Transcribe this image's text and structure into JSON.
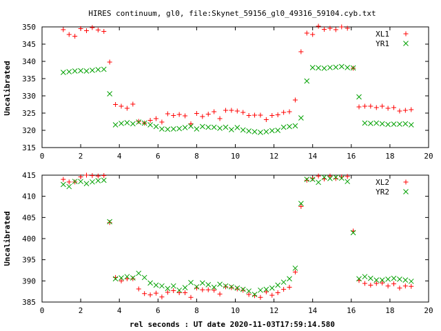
{
  "figure": {
    "title": "HIRES continuum, gl0, file:Skynet_59156_gl0_49316_59104.cyb.txt",
    "xlabel": "rel seconds : UT date 2020-11-03T17:59:14.580"
  },
  "colors": {
    "red": "#ff0000",
    "green": "#00a000",
    "axis": "#000000"
  },
  "chart_data": [
    {
      "type": "scatter",
      "title": "HIRES continuum, gl0, file:Skynet_59156_gl0_49316_59104.cyb.txt",
      "xlabel": "",
      "ylabel": "Uncalibrated",
      "xlim": [
        0,
        20
      ],
      "ylim": [
        315,
        350
      ],
      "xticks": [
        0,
        2,
        4,
        6,
        8,
        10,
        12,
        14,
        16,
        18,
        20
      ],
      "yticks": [
        315,
        320,
        325,
        330,
        335,
        340,
        345,
        350
      ],
      "grid": false,
      "legend": "top-right",
      "series": [
        {
          "name": "XL1",
          "color": "#ff0000",
          "marker": "plus",
          "x": [
            1.1,
            1.4,
            1.7,
            2.0,
            2.3,
            2.6,
            2.9,
            3.2,
            3.5,
            3.8,
            4.1,
            4.4,
            4.7,
            5.0,
            5.3,
            5.6,
            5.9,
            6.2,
            6.5,
            6.8,
            7.1,
            7.4,
            7.7,
            8.0,
            8.3,
            8.6,
            8.9,
            9.2,
            9.5,
            9.8,
            10.1,
            10.4,
            10.7,
            11.0,
            11.3,
            11.6,
            11.9,
            12.2,
            12.5,
            12.8,
            13.1,
            13.4,
            13.7,
            14.0,
            14.3,
            14.6,
            14.9,
            15.2,
            15.5,
            15.8,
            16.1,
            16.4,
            16.7,
            17.0,
            17.3,
            17.6,
            17.9,
            18.2,
            18.5,
            18.8,
            19.1
          ],
          "y": [
            349.2,
            347.8,
            347.3,
            349.5,
            348.9,
            349.8,
            349.1,
            348.7,
            339.8,
            327.5,
            327.0,
            326.4,
            327.6,
            322.6,
            322.1,
            322.9,
            323.4,
            322.4,
            324.8,
            324.3,
            324.6,
            324.2,
            321.9,
            324.9,
            324.0,
            324.7,
            325.4,
            323.4,
            325.8,
            325.8,
            325.6,
            325.2,
            324.3,
            324.4,
            324.4,
            323.1,
            324.3,
            324.5,
            325.2,
            325.4,
            328.8,
            342.8,
            348.2,
            347.8,
            350.2,
            349.3,
            349.6,
            349.2,
            350.0,
            349.6,
            338.0,
            326.8,
            327.0,
            327.0,
            326.6,
            327.0,
            326.4,
            326.6,
            325.6,
            325.8,
            326.0
          ]
        },
        {
          "name": "YR1",
          "color": "#00a000",
          "marker": "cross",
          "x": [
            1.1,
            1.4,
            1.7,
            2.0,
            2.3,
            2.6,
            2.9,
            3.2,
            3.5,
            3.8,
            4.1,
            4.4,
            4.7,
            5.0,
            5.3,
            5.6,
            5.9,
            6.2,
            6.5,
            6.8,
            7.1,
            7.4,
            7.7,
            8.0,
            8.3,
            8.6,
            8.9,
            9.2,
            9.5,
            9.8,
            10.1,
            10.4,
            10.7,
            11.0,
            11.3,
            11.6,
            11.9,
            12.2,
            12.5,
            12.8,
            13.1,
            13.4,
            13.7,
            14.0,
            14.3,
            14.6,
            14.9,
            15.2,
            15.5,
            15.8,
            16.1,
            16.4,
            16.7,
            17.0,
            17.3,
            17.6,
            17.9,
            18.2,
            18.5,
            18.8,
            19.1
          ],
          "y": [
            336.8,
            337.0,
            337.2,
            337.3,
            337.2,
            337.4,
            337.6,
            337.7,
            330.6,
            321.6,
            322.0,
            322.2,
            321.9,
            322.4,
            322.1,
            321.6,
            321.1,
            320.4,
            320.3,
            320.4,
            320.5,
            320.8,
            321.2,
            320.4,
            321.1,
            320.9,
            320.9,
            320.6,
            320.9,
            320.2,
            320.8,
            320.1,
            319.8,
            319.6,
            319.4,
            319.6,
            319.9,
            320.0,
            320.9,
            321.1,
            321.3,
            323.6,
            334.3,
            338.2,
            338.1,
            338.0,
            338.2,
            338.3,
            338.5,
            338.2,
            338.1,
            329.7,
            322.1,
            322.0,
            322.1,
            321.9,
            321.7,
            321.8,
            321.8,
            321.9,
            321.6
          ]
        }
      ]
    },
    {
      "type": "scatter",
      "title": "",
      "xlabel": "rel seconds : UT date 2020-11-03T17:59:14.580",
      "ylabel": "Uncalibrated",
      "xlim": [
        0,
        20
      ],
      "ylim": [
        385,
        415
      ],
      "xticks": [
        0,
        2,
        4,
        6,
        8,
        10,
        12,
        14,
        16,
        18,
        20
      ],
      "yticks": [
        385,
        390,
        395,
        400,
        405,
        410,
        415
      ],
      "grid": false,
      "legend": "top-right",
      "series": [
        {
          "name": "XL2",
          "color": "#ff0000",
          "marker": "plus",
          "x": [
            1.1,
            1.4,
            1.7,
            2.0,
            2.3,
            2.6,
            2.9,
            3.2,
            3.5,
            3.8,
            4.1,
            4.4,
            4.7,
            5.0,
            5.3,
            5.6,
            5.9,
            6.2,
            6.5,
            6.8,
            7.1,
            7.4,
            7.7,
            8.0,
            8.3,
            8.6,
            8.9,
            9.2,
            9.5,
            9.8,
            10.1,
            10.4,
            10.7,
            11.0,
            11.3,
            11.6,
            11.9,
            12.2,
            12.5,
            12.8,
            13.1,
            13.4,
            13.7,
            14.0,
            14.3,
            14.6,
            14.9,
            15.2,
            15.5,
            15.8,
            16.1,
            16.4,
            16.7,
            17.0,
            17.3,
            17.6,
            17.9,
            18.2,
            18.5,
            18.8,
            19.1
          ],
          "y": [
            414.0,
            413.4,
            413.4,
            414.6,
            415.0,
            414.9,
            414.8,
            414.9,
            403.8,
            390.8,
            390.0,
            390.5,
            390.5,
            388.1,
            387.0,
            386.7,
            387.1,
            386.2,
            387.3,
            387.7,
            387.2,
            387.2,
            386.1,
            388.3,
            387.9,
            387.9,
            387.8,
            386.9,
            388.6,
            388.4,
            388.1,
            387.8,
            386.8,
            386.5,
            386.1,
            387.4,
            386.6,
            387.2,
            388.0,
            388.5,
            392.1,
            407.6,
            413.8,
            414.2,
            414.8,
            414.1,
            414.8,
            414.2,
            414.6,
            414.7,
            401.8,
            390.1,
            389.4,
            389.0,
            389.4,
            389.5,
            388.8,
            389.3,
            388.3,
            388.8,
            388.7
          ]
        },
        {
          "name": "YR2",
          "color": "#00a000",
          "marker": "cross",
          "x": [
            1.1,
            1.4,
            1.7,
            2.0,
            2.3,
            2.6,
            2.9,
            3.2,
            3.5,
            3.8,
            4.1,
            4.4,
            4.7,
            5.0,
            5.3,
            5.6,
            5.9,
            6.2,
            6.5,
            6.8,
            7.1,
            7.4,
            7.7,
            8.0,
            8.3,
            8.6,
            8.9,
            9.2,
            9.5,
            9.8,
            10.1,
            10.4,
            10.7,
            11.0,
            11.3,
            11.6,
            11.9,
            12.2,
            12.5,
            12.8,
            13.1,
            13.4,
            13.7,
            14.0,
            14.3,
            14.6,
            14.9,
            15.2,
            15.5,
            15.8,
            16.1,
            16.4,
            16.7,
            17.0,
            17.3,
            17.6,
            17.9,
            18.2,
            18.5,
            18.8,
            19.1
          ],
          "y": [
            412.8,
            412.3,
            413.5,
            413.5,
            413.0,
            413.4,
            413.7,
            413.8,
            404.0,
            390.5,
            390.7,
            391.0,
            390.7,
            391.8,
            390.8,
            389.5,
            389.0,
            388.8,
            388.2,
            388.8,
            387.8,
            388.4,
            389.6,
            388.6,
            389.5,
            389.1,
            388.5,
            389.2,
            388.8,
            388.6,
            388.3,
            388.0,
            387.6,
            386.8,
            387.8,
            388.0,
            388.3,
            389.0,
            389.7,
            390.5,
            393.0,
            408.3,
            414.0,
            414.0,
            413.3,
            414.5,
            414.2,
            414.5,
            414.3,
            413.5,
            401.4,
            390.5,
            391.0,
            390.6,
            390.2,
            390.2,
            390.4,
            390.6,
            390.4,
            390.2,
            389.9
          ]
        }
      ]
    }
  ]
}
